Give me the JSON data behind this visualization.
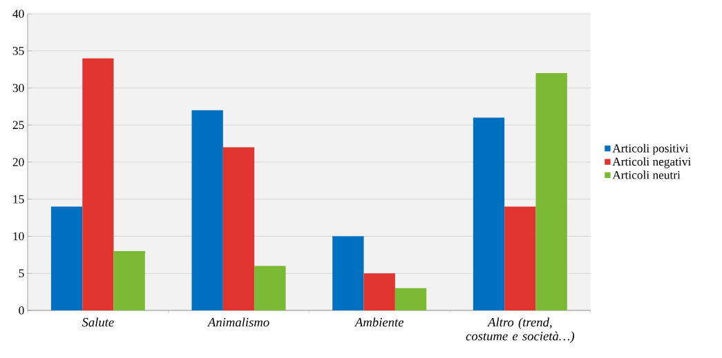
{
  "chart_data": {
    "type": "bar",
    "categories": [
      "Salute",
      "Animalismo",
      "Ambiente",
      "Altro (trend, costume e società…)"
    ],
    "series": [
      {
        "name": "Articoli positivi",
        "color": "#0070c0",
        "values": [
          14,
          27,
          10,
          26
        ]
      },
      {
        "name": "Articoli negativi",
        "color": "#e0342f",
        "values": [
          34,
          22,
          5,
          14
        ]
      },
      {
        "name": "Articoli neutri",
        "color": "#7cba35",
        "values": [
          8,
          6,
          3,
          32
        ]
      }
    ],
    "ylim": [
      0,
      40
    ],
    "yticks": [
      0,
      5,
      10,
      15,
      20,
      25,
      30,
      35,
      40
    ],
    "grid": "y",
    "legend": "right"
  }
}
